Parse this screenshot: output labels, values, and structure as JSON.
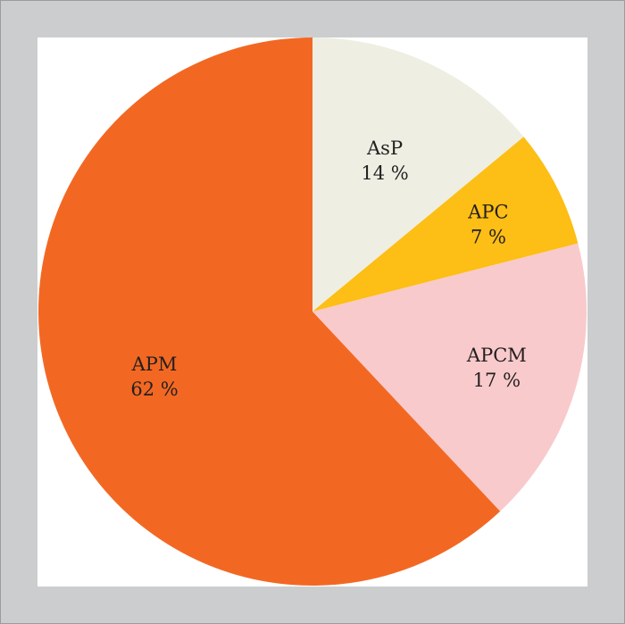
{
  "chart_data": {
    "type": "pie",
    "title": "",
    "start_angle_deg": 0,
    "direction": "clockwise",
    "slices": [
      {
        "label": "AsP",
        "value": 14,
        "value_label": "14 %",
        "color": "#eeeee3"
      },
      {
        "label": "APC",
        "value": 7,
        "value_label": "7 %",
        "color": "#fdbe15"
      },
      {
        "label": "APCM",
        "value": 17,
        "value_label": "17 %",
        "color": "#f9cacb"
      },
      {
        "label": "APM",
        "value": 62,
        "value_label": "62 %",
        "color": "#f26823"
      }
    ],
    "legend": "none"
  },
  "colors": {
    "frame": "#cccdce",
    "background": "#ffffff",
    "label_text": "#231f20"
  }
}
